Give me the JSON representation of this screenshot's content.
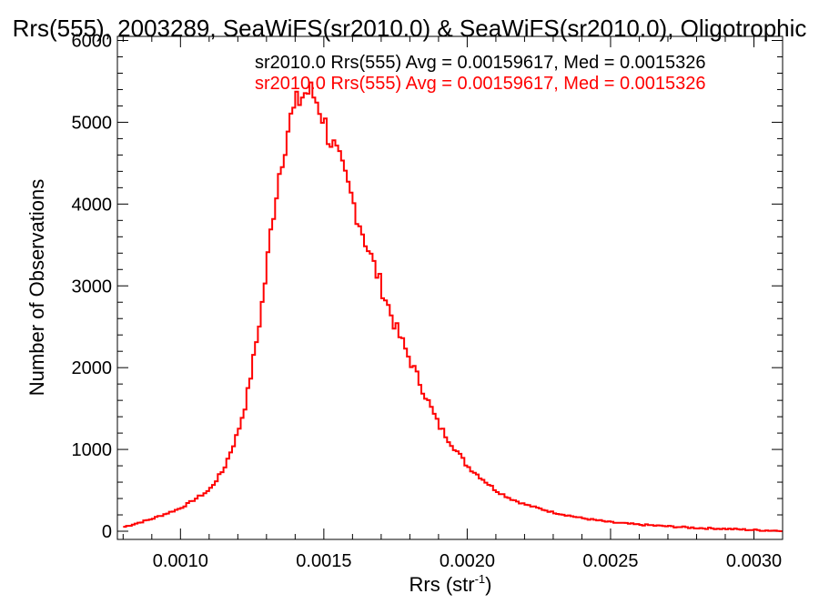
{
  "chart_data": {
    "type": "histogram",
    "title": "Rrs(555), 2003289, SeaWiFS(sr2010.0) & SeaWiFS(sr2010.0), Oligotrophic",
    "xlabel": "Rrs (str",
    "xlabel_sup": "-1",
    "xlabel_close": ")",
    "ylabel": "Number of Observations",
    "xlim": [
      0.00078,
      0.0031
    ],
    "ylim": [
      -100,
      6050
    ],
    "xticks": [
      0.001,
      0.0015,
      0.002,
      0.0025,
      0.003
    ],
    "xtick_labels": [
      "0.0010",
      "0.0015",
      "0.0020",
      "0.0025",
      "0.0030"
    ],
    "yticks": [
      0,
      1000,
      2000,
      3000,
      4000,
      5000,
      6000
    ],
    "ytick_labels": [
      "0",
      "1000",
      "2000",
      "3000",
      "4000",
      "5000",
      "6000"
    ],
    "annotations": [
      {
        "text": "sr2010.0 Rrs(555) Avg = 0.00159617, Med = 0.0015326",
        "color": "#000000"
      },
      {
        "text": "sr2010.0 Rrs(555) Avg = 0.00159617, Med = 0.0015326",
        "color": "#ff0000"
      }
    ],
    "series": [
      {
        "color": "#ff0000",
        "x": [
          0.0008,
          0.0009,
          0.001,
          0.0011,
          0.00115,
          0.0012,
          0.00123,
          0.00126,
          0.00129,
          0.00132,
          0.00135,
          0.00138,
          0.00141,
          0.00143,
          0.00145,
          0.00147,
          0.00149,
          0.00151,
          0.00154,
          0.00157,
          0.0016,
          0.00165,
          0.0017,
          0.00175,
          0.0018,
          0.00185,
          0.0019,
          0.00195,
          0.002,
          0.00205,
          0.0021,
          0.00215,
          0.0022,
          0.00225,
          0.0023,
          0.0024,
          0.0025,
          0.0026,
          0.0027,
          0.0028,
          0.0029,
          0.003,
          0.0031
        ],
        "values": [
          50,
          150,
          280,
          500,
          750,
          1200,
          1600,
          2200,
          2900,
          3800,
          4500,
          5000,
          5250,
          5350,
          5380,
          5300,
          5150,
          4900,
          4650,
          4350,
          4050,
          3500,
          3000,
          2500,
          2100,
          1700,
          1300,
          1050,
          800,
          650,
          500,
          400,
          330,
          280,
          230,
          160,
          110,
          80,
          60,
          40,
          30,
          15,
          5
        ]
      }
    ]
  }
}
